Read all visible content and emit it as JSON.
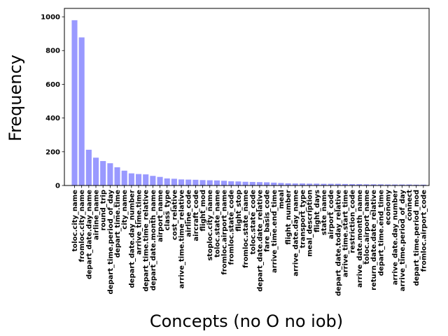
{
  "chart_data": {
    "type": "bar",
    "xlabel": "Concepts (no O no iob)",
    "ylabel": "Frequency",
    "ylim": [
      0,
      1050
    ],
    "yticks": [
      0,
      200,
      400,
      600,
      800,
      1000
    ],
    "grid": false,
    "bar_color": "#9999ff",
    "categories": [
      "toloc.city_name",
      "fromloc.city_name",
      "depart_date.day_name",
      "airline_name",
      "round_trip",
      "depart_time.period_of_day",
      "depart_time.time",
      "city_name",
      "depart_date.day_number",
      "arrive_time.time",
      "depart_time.time_relative",
      "depart_date.month_name",
      "airport_name",
      "class_type",
      "cost_relative",
      "arrive_time.time_relative",
      "airline_code",
      "aircraft_code",
      "flight_mod",
      "stoploc.city_name",
      "toloc.state_name",
      "fromloc.airport_name",
      "fromloc.state_code",
      "flight_stop",
      "fromloc.state_name",
      "toloc.state_code",
      "depart_date.date_relative",
      "fare_basis_code",
      "arrive_time.end_time",
      "meal",
      "flight_number",
      "arrive_date.day_name",
      "transport_type",
      "meal_description",
      "flight_days",
      "state_name",
      "airport_code",
      "depart_date.today_relative",
      "arrive_time.start_time",
      "restriction_code",
      "arrive_date.month_name",
      "toloc.airport_name",
      "return_date.date_relative",
      "depart_time.end_time",
      "economy",
      "arrive_date.day_number",
      "arrive_time.period_of_day",
      "connect",
      "depart_time.period_mod",
      "fromloc.airport_code"
    ],
    "values": [
      980,
      878,
      212,
      165,
      145,
      132,
      108,
      88,
      72,
      68,
      66,
      57,
      51,
      42,
      40,
      36,
      35,
      34,
      32,
      31,
      30,
      28,
      25,
      24,
      22,
      21,
      20,
      19,
      17,
      15,
      13,
      12,
      12,
      11,
      11,
      10,
      10,
      10,
      9,
      8,
      8,
      7,
      7,
      7,
      6,
      6,
      6,
      6,
      5,
      5
    ]
  }
}
